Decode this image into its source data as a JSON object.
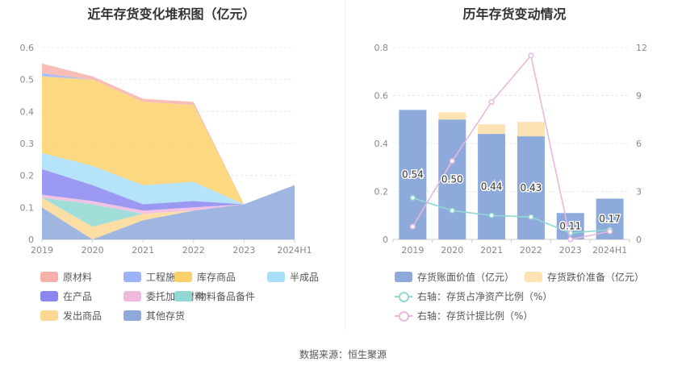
{
  "left": {
    "title": "近年存货变化堆积图（亿元）",
    "chart_data": {
      "type": "area",
      "stacked": true,
      "categories": [
        "2019",
        "2020",
        "2021",
        "2022",
        "2023",
        "2024H1"
      ],
      "ylim": [
        0,
        0.6
      ],
      "yticks": [
        "0",
        "0.1",
        "0.2",
        "0.3",
        "0.4",
        "0.5",
        "0.6"
      ],
      "grid": true,
      "legend_position": "bottom",
      "series": [
        {
          "name": "其他存货",
          "color": "#8eaadb",
          "values": [
            0.1,
            0.0,
            0.06,
            0.09,
            0.11,
            0.17
          ]
        },
        {
          "name": "发出商品",
          "color": "#fcd894",
          "values": [
            0.03,
            0.04,
            0.02,
            0.0,
            0.0,
            0.0
          ]
        },
        {
          "name": "物料备品备件",
          "color": "#8fd8d4",
          "values": [
            0.0,
            0.07,
            0.0,
            0.0,
            0.0,
            0.0
          ]
        },
        {
          "name": "委托加工材料",
          "color": "#f0b9de",
          "values": [
            0.01,
            0.01,
            0.01,
            0.01,
            0.0,
            0.0
          ]
        },
        {
          "name": "在产品",
          "color": "#8a87f0",
          "values": [
            0.08,
            0.05,
            0.02,
            0.02,
            0.0,
            0.0
          ]
        },
        {
          "name": "半成品",
          "color": "#a8def9",
          "values": [
            0.05,
            0.06,
            0.06,
            0.06,
            0.0,
            0.0
          ]
        },
        {
          "name": "库存商品",
          "color": "#fcd16b",
          "values": [
            0.24,
            0.27,
            0.26,
            0.24,
            0.0,
            0.0
          ]
        },
        {
          "name": "工程施工",
          "color": "#9db3f7",
          "values": [
            0.01,
            0.0,
            0.0,
            0.0,
            0.0,
            0.0
          ]
        },
        {
          "name": "原材料",
          "color": "#f8b1aa",
          "values": [
            0.03,
            0.01,
            0.01,
            0.01,
            0.0,
            0.0
          ]
        }
      ],
      "legend_order": [
        "原材料",
        "工程施工",
        "库存商品",
        "半成品",
        "在产品",
        "委托加工材料",
        "物料备品备件",
        "发出商品",
        "其他存货"
      ]
    }
  },
  "right": {
    "title": "历年存货变动情况",
    "chart_data": {
      "type": "bar",
      "stacked": true,
      "categories": [
        "2019",
        "2020",
        "2021",
        "2022",
        "2023",
        "2024H1"
      ],
      "ylim": [
        0,
        0.8
      ],
      "yticks": [
        "0",
        "0.2",
        "0.4",
        "0.6",
        "0.8"
      ],
      "y2lim": [
        0,
        12
      ],
      "y2ticks": [
        "0",
        "3",
        "6",
        "9",
        "12"
      ],
      "grid": true,
      "legend_position": "bottom",
      "bars": [
        {
          "name": "存货账面价值（亿元）",
          "color": "#8eaadb",
          "values": [
            0.54,
            0.5,
            0.44,
            0.43,
            0.11,
            0.17
          ],
          "labels": [
            "0.54",
            "0.50",
            "0.44",
            "0.43",
            "0.11",
            "0.17"
          ]
        },
        {
          "name": "存货跌价准备（亿元）",
          "color": "#fde3b4",
          "values": [
            0.0,
            0.03,
            0.04,
            0.06,
            0.0,
            0.0
          ]
        }
      ],
      "lines": [
        {
          "name": "右轴：存货占净资产比例（%）",
          "color": "#8fd8d4",
          "values": [
            2.6,
            1.8,
            1.5,
            1.4,
            0.4,
            0.6
          ]
        },
        {
          "name": "右轴：存货计提比例（%）",
          "color": "#e8b8dc",
          "values": [
            0.8,
            4.9,
            8.6,
            11.5,
            0.0,
            0.5
          ]
        }
      ]
    }
  },
  "source": "数据来源：恒生聚源"
}
